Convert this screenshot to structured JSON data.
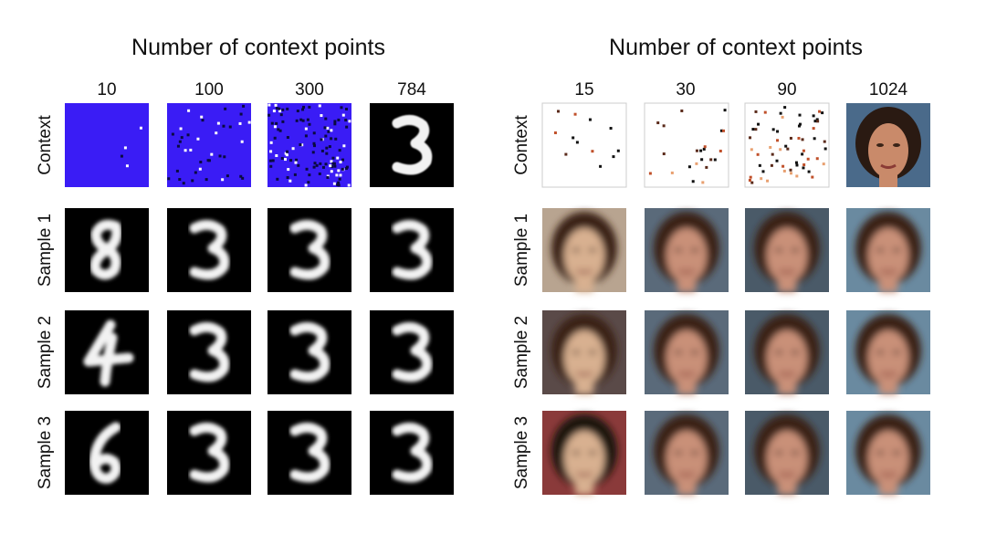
{
  "left": {
    "title": "Number of context points",
    "columns": [
      "10",
      "100",
      "300",
      "784"
    ],
    "rows": [
      "Context",
      "Sample 1",
      "Sample 2",
      "Sample 3"
    ]
  },
  "right": {
    "title": "Number of context points",
    "columns": [
      "15",
      "30",
      "90",
      "1024"
    ],
    "rows": [
      "Context",
      "Sample 1",
      "Sample 2",
      "Sample 3"
    ]
  }
}
